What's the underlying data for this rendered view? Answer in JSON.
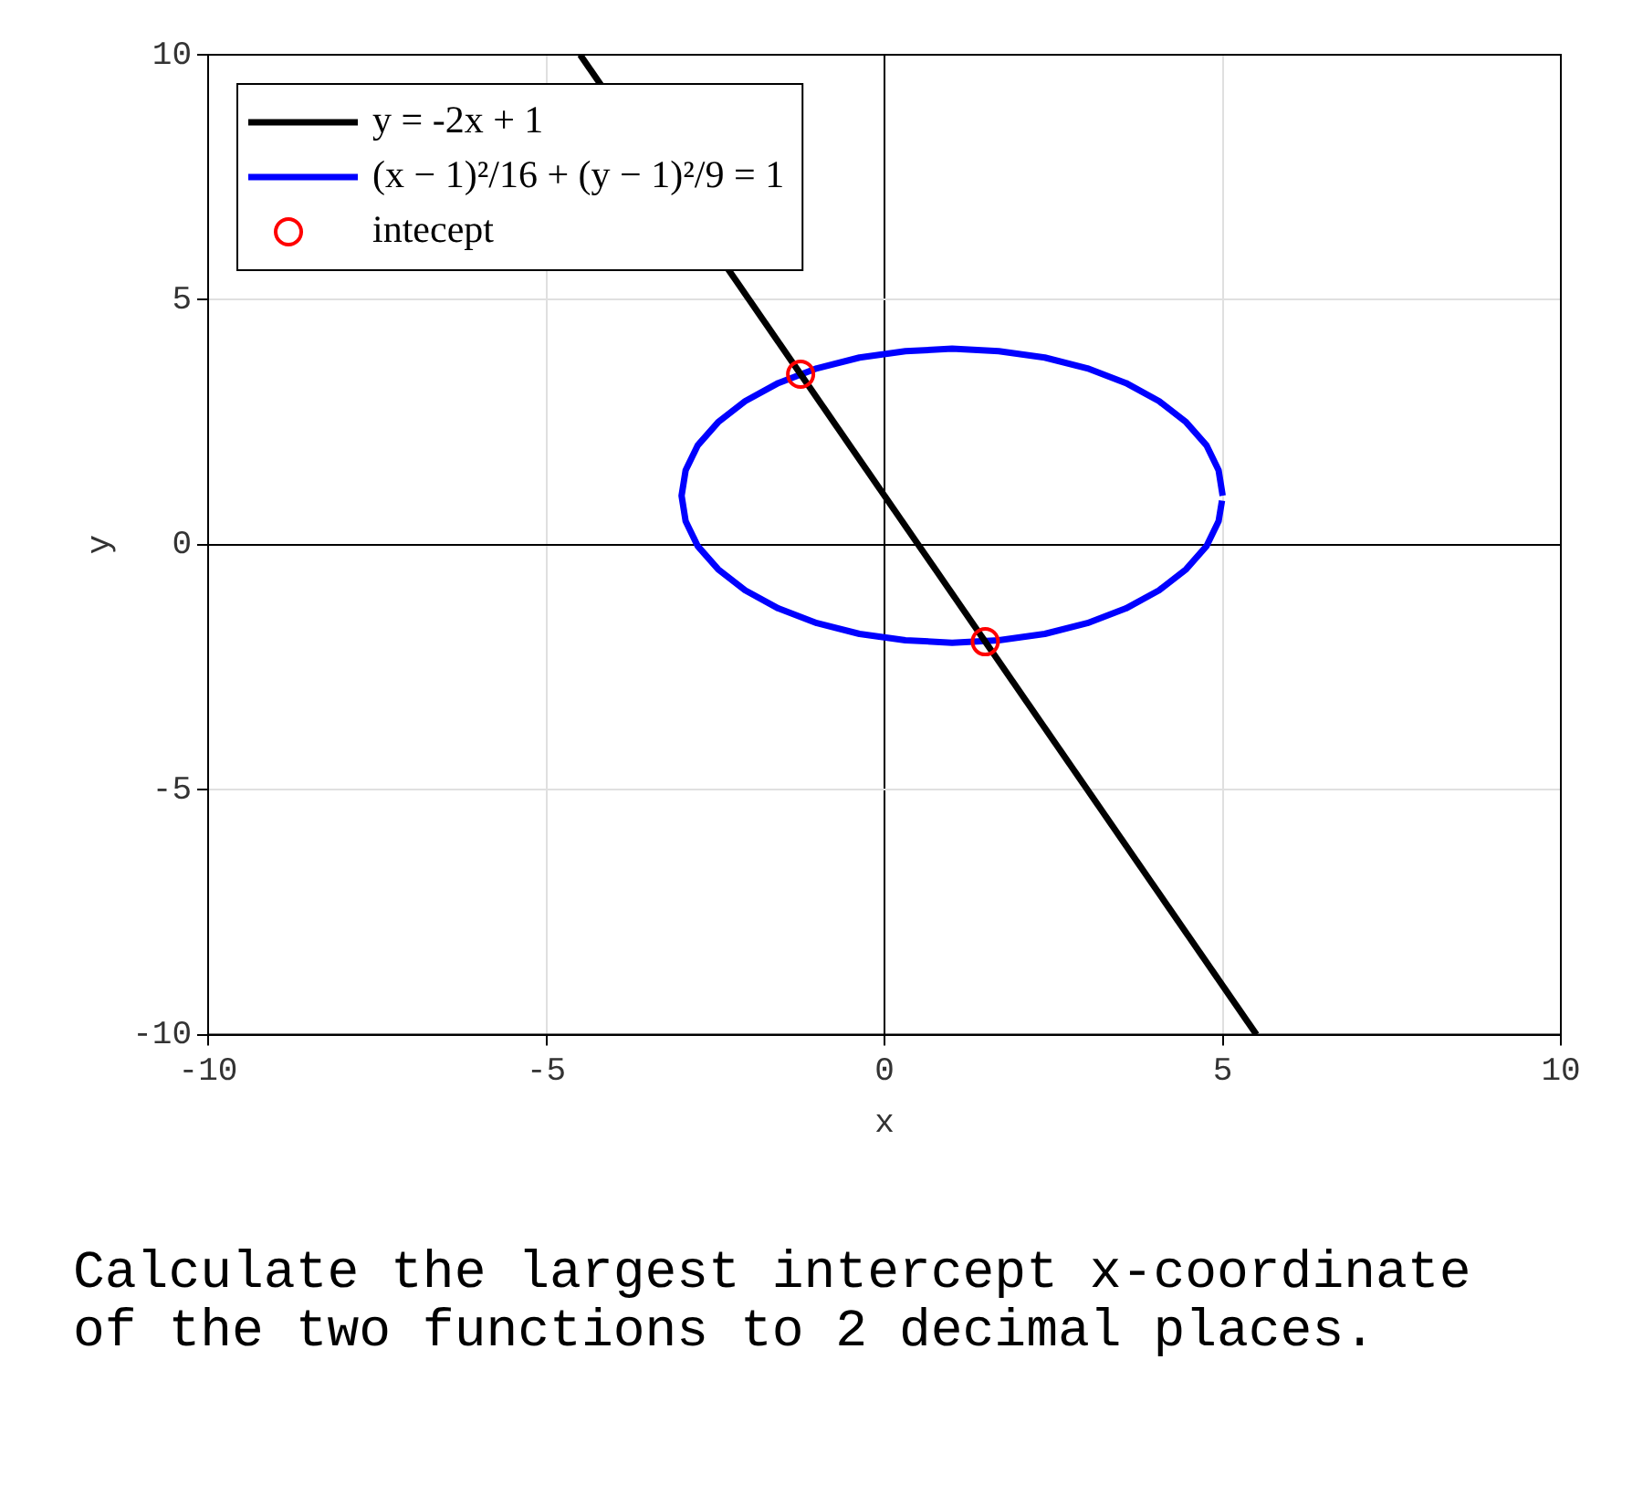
{
  "chart_data": {
    "type": "line",
    "xlabel": "x",
    "ylabel": "y",
    "xlim": [
      -10,
      10
    ],
    "ylim": [
      -10,
      10
    ],
    "xticks": [
      -10,
      -5,
      0,
      5,
      10
    ],
    "yticks": [
      -10,
      -5,
      0,
      5,
      10
    ],
    "grid": true,
    "legend": "top left",
    "annotations": [
      "Calculate the largest intercept x-coordinate of the two functions to 2 decimal places."
    ],
    "series": [
      {
        "type": "line",
        "name": "y = -2x + 1",
        "color": "#000000",
        "x": [
          -4.5,
          5.5
        ],
        "values": [
          10,
          -10
        ]
      },
      {
        "type": "line",
        "name": "(x − 1)²/16 + (y − 1)²/9 = 1",
        "color": "#0000ff",
        "x": [
          5,
          4.94,
          4.76,
          4.46,
          4.06,
          3.57,
          3,
          2.37,
          1.69,
          1,
          0.31,
          -0.37,
          -1,
          -1.57,
          -2.06,
          -2.46,
          -2.76,
          -2.94,
          -3,
          -2.94,
          -2.76,
          -2.46,
          -2.06,
          -1.57,
          -1,
          -0.37,
          0.31,
          1,
          1.69,
          2.37,
          3,
          3.57,
          4.06,
          4.46,
          4.76,
          4.94,
          4.99
        ],
        "values": [
          1,
          1.52,
          2.03,
          2.5,
          2.93,
          3.3,
          3.6,
          3.82,
          3.95,
          4,
          3.95,
          3.82,
          3.6,
          3.3,
          2.93,
          2.5,
          2.03,
          1.52,
          1,
          0.48,
          -0.03,
          -0.5,
          -0.93,
          -1.3,
          -1.6,
          -1.82,
          -1.95,
          -2,
          -1.95,
          -1.82,
          -1.6,
          -1.3,
          -0.93,
          -0.5,
          -0.03,
          0.48,
          0.9
        ]
      },
      {
        "type": "scatter",
        "name": "intecept",
        "color": "#ff0000",
        "marker": "circle",
        "x": [
          -1.24,
          1.49
        ],
        "values": [
          3.48,
          -1.98
        ]
      }
    ]
  }
}
